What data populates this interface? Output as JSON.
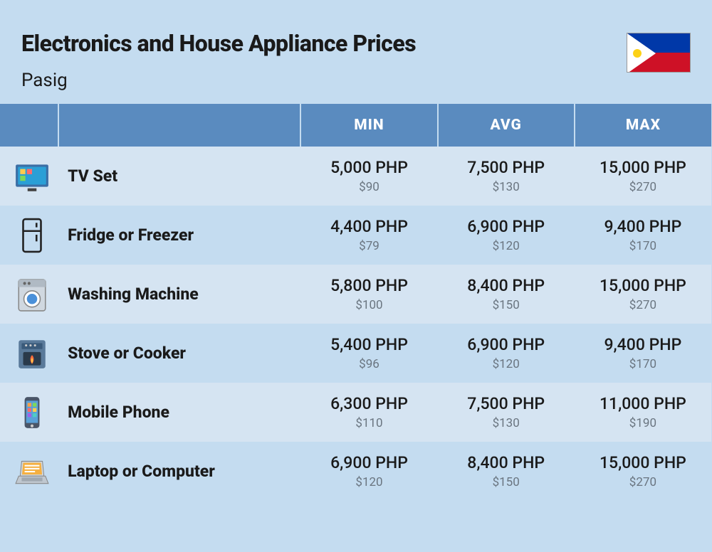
{
  "header": {
    "title": "Electronics and House Appliance Prices",
    "subtitle": "Pasig",
    "flag_name": "philippines-flag",
    "flag_colors": {
      "blue": "#0038a8",
      "red": "#ce1126",
      "white": "#ffffff",
      "sun": "#fcd116"
    }
  },
  "table": {
    "header_bg": "#5a8bbf",
    "header_fg": "#ffffff",
    "row_odd_bg": "#d5e4f2",
    "row_even_bg": "#c4dcf0",
    "columns": [
      "",
      "",
      "MIN",
      "AVG",
      "MAX"
    ],
    "php_suffix": " PHP",
    "usd_prefix": "$",
    "rows": [
      {
        "icon": "tv-icon",
        "name": "TV Set",
        "min_php": "5,000",
        "min_usd": "90",
        "avg_php": "7,500",
        "avg_usd": "130",
        "max_php": "15,000",
        "max_usd": "270"
      },
      {
        "icon": "fridge-icon",
        "name": "Fridge or Freezer",
        "min_php": "4,400",
        "min_usd": "79",
        "avg_php": "6,900",
        "avg_usd": "120",
        "max_php": "9,400",
        "max_usd": "170"
      },
      {
        "icon": "washing-machine-icon",
        "name": "Washing Machine",
        "min_php": "5,800",
        "min_usd": "100",
        "avg_php": "8,400",
        "avg_usd": "150",
        "max_php": "15,000",
        "max_usd": "270"
      },
      {
        "icon": "stove-icon",
        "name": "Stove or Cooker",
        "min_php": "5,400",
        "min_usd": "96",
        "avg_php": "6,900",
        "avg_usd": "120",
        "max_php": "9,400",
        "max_usd": "170"
      },
      {
        "icon": "mobile-phone-icon",
        "name": "Mobile Phone",
        "min_php": "6,300",
        "min_usd": "110",
        "avg_php": "7,500",
        "avg_usd": "130",
        "max_php": "11,000",
        "max_usd": "190"
      },
      {
        "icon": "laptop-icon",
        "name": "Laptop or Computer",
        "min_php": "6,900",
        "min_usd": "120",
        "avg_php": "8,400",
        "avg_usd": "150",
        "max_php": "15,000",
        "max_usd": "270"
      }
    ]
  },
  "style": {
    "page_bg": "#c4dcf0",
    "title_fontsize": 32,
    "title_weight": 800,
    "subtitle_fontsize": 26,
    "header_cell_fontsize": 21,
    "name_fontsize": 23,
    "php_fontsize": 23,
    "usd_fontsize": 17,
    "usd_color": "#6a7580",
    "text_color": "#1a1a1a"
  }
}
